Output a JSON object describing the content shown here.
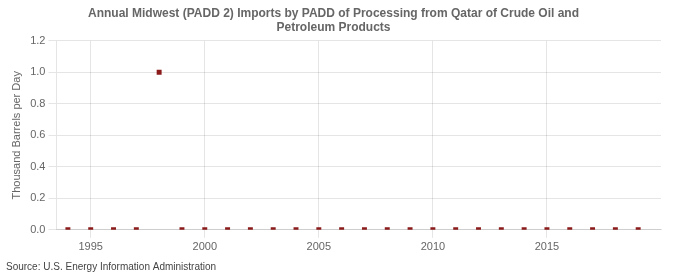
{
  "chart_data": {
    "type": "scatter",
    "title": "Annual Midwest (PADD 2) Imports by PADD of Processing from Qatar of Crude Oil and\nPetroleum Products",
    "y_label": "Thousand Barrels per Day",
    "source": "Source: U.S. Energy Information Administration",
    "x": [
      1994,
      1995,
      1996,
      1997,
      1998,
      1999,
      2000,
      2001,
      2002,
      2003,
      2004,
      2005,
      2006,
      2007,
      2008,
      2009,
      2010,
      2011,
      2012,
      2013,
      2014,
      2015,
      2016,
      2017,
      2018,
      2019
    ],
    "values": [
      0.0,
      0.0,
      0.0,
      0.0,
      1.0,
      0.0,
      0.0,
      0.0,
      0.0,
      0.0,
      0.0,
      0.0,
      0.0,
      0.0,
      0.0,
      0.0,
      0.0,
      0.0,
      0.0,
      0.0,
      0.0,
      0.0,
      0.0,
      0.0,
      0.0,
      0.0
    ],
    "color": "#8b1a1a",
    "marker": "square",
    "xlim": [
      1993.5,
      2020
    ],
    "xticks": [
      1995,
      2000,
      2005,
      2010,
      2015
    ],
    "ylim": [
      0.0,
      1.2
    ],
    "yticks": [
      {
        "value": 0.0,
        "label": "0.0"
      },
      0.2,
      0.4,
      0.6,
      0.8,
      {
        "value": 1.0,
        "label": "1.0"
      },
      1.2
    ],
    "grid": true
  }
}
